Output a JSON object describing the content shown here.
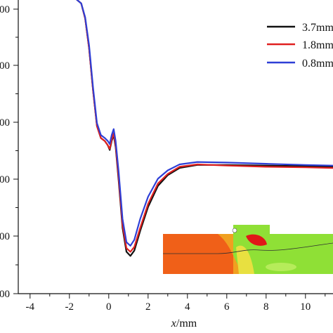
{
  "chart_data": {
    "type": "line",
    "xlabel_italic": "x",
    "xlabel_unit": "/mm",
    "ylabel": "",
    "xlim": [
      -4.6,
      11.4
    ],
    "ylim": [
      0,
      5
    ],
    "x_ticks": [
      -4,
      -2,
      0,
      2,
      4,
      6,
      8,
      10
    ],
    "x_tick_labels": [
      "-4",
      "-2",
      "0",
      "2",
      "4",
      "6",
      "8",
      "10"
    ],
    "y_ticks": [
      0,
      1,
      2,
      3,
      4,
      5
    ],
    "y_tick_labels": [
      "00",
      "00",
      "00",
      "00",
      "00",
      "00"
    ],
    "grid": false,
    "legend_position": "top-right",
    "series": [
      {
        "name": "3.7mm",
        "color": "#111111",
        "points": [
          [
            -3.4,
            4.99
          ],
          [
            -2.6,
            4.98
          ],
          [
            -1.8,
            4.96
          ],
          [
            -1.4,
            4.85
          ],
          [
            -1.2,
            4.6
          ],
          [
            -1.0,
            4.1
          ],
          [
            -0.8,
            3.4
          ],
          [
            -0.6,
            2.8
          ],
          [
            -0.4,
            2.6
          ],
          [
            -0.2,
            2.55
          ],
          [
            -0.05,
            2.48
          ],
          [
            0.05,
            2.4
          ],
          [
            0.15,
            2.55
          ],
          [
            0.25,
            2.65
          ],
          [
            0.35,
            2.45
          ],
          [
            0.5,
            1.9
          ],
          [
            0.7,
            1.1
          ],
          [
            0.9,
            0.7
          ],
          [
            1.1,
            0.63
          ],
          [
            1.3,
            0.72
          ],
          [
            1.6,
            1.05
          ],
          [
            2.0,
            1.45
          ],
          [
            2.5,
            1.8
          ],
          [
            3.0,
            1.98
          ],
          [
            3.6,
            2.1
          ],
          [
            4.5,
            2.15
          ],
          [
            6,
            2.15
          ],
          [
            8,
            2.14
          ],
          [
            10,
            2.13
          ],
          [
            11.4,
            2.12
          ]
        ]
      },
      {
        "name": "1.8mm",
        "color": "#e02020",
        "points": [
          [
            -3.4,
            4.99
          ],
          [
            -2.6,
            4.98
          ],
          [
            -1.8,
            4.96
          ],
          [
            -1.4,
            4.85
          ],
          [
            -1.2,
            4.6
          ],
          [
            -1.0,
            4.1
          ],
          [
            -0.8,
            3.4
          ],
          [
            -0.6,
            2.8
          ],
          [
            -0.4,
            2.6
          ],
          [
            -0.2,
            2.55
          ],
          [
            -0.05,
            2.48
          ],
          [
            0.05,
            2.42
          ],
          [
            0.15,
            2.57
          ],
          [
            0.25,
            2.68
          ],
          [
            0.35,
            2.48
          ],
          [
            0.5,
            1.95
          ],
          [
            0.7,
            1.15
          ],
          [
            0.9,
            0.76
          ],
          [
            1.1,
            0.7
          ],
          [
            1.3,
            0.78
          ],
          [
            1.6,
            1.1
          ],
          [
            2.0,
            1.5
          ],
          [
            2.5,
            1.84
          ],
          [
            3.0,
            2.0
          ],
          [
            3.6,
            2.12
          ],
          [
            4.5,
            2.16
          ],
          [
            6,
            2.14
          ],
          [
            8,
            2.12
          ],
          [
            10,
            2.11
          ],
          [
            11.4,
            2.1
          ]
        ]
      },
      {
        "name": "0.8mm",
        "color": "#2e3fd6",
        "points": [
          [
            -3.4,
            4.99
          ],
          [
            -2.6,
            4.98
          ],
          [
            -1.8,
            4.96
          ],
          [
            -1.4,
            4.85
          ],
          [
            -1.2,
            4.62
          ],
          [
            -1.0,
            4.15
          ],
          [
            -0.8,
            3.45
          ],
          [
            -0.6,
            2.85
          ],
          [
            -0.4,
            2.65
          ],
          [
            -0.2,
            2.6
          ],
          [
            -0.05,
            2.55
          ],
          [
            0.05,
            2.5
          ],
          [
            0.15,
            2.65
          ],
          [
            0.25,
            2.75
          ],
          [
            0.35,
            2.55
          ],
          [
            0.5,
            2.05
          ],
          [
            0.7,
            1.25
          ],
          [
            0.9,
            0.86
          ],
          [
            1.1,
            0.8
          ],
          [
            1.3,
            0.9
          ],
          [
            1.6,
            1.25
          ],
          [
            2.0,
            1.62
          ],
          [
            2.5,
            1.92
          ],
          [
            3.0,
            2.06
          ],
          [
            3.6,
            2.16
          ],
          [
            4.5,
            2.2
          ],
          [
            6,
            2.19
          ],
          [
            8,
            2.17
          ],
          [
            10,
            2.15
          ],
          [
            11.4,
            2.14
          ]
        ]
      }
    ],
    "inset": {
      "description_colors": [
        "#f06018",
        "#9ae030",
        "#e8e040"
      ]
    }
  }
}
